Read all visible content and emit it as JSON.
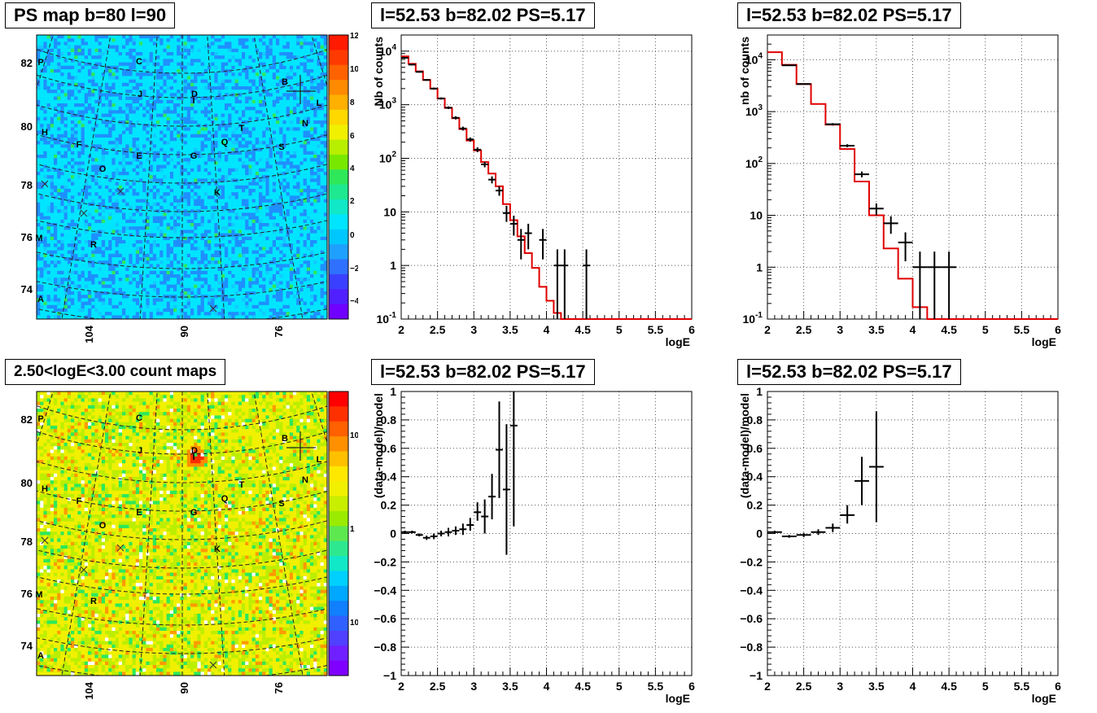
{
  "titles": {
    "map_top": "PS map b=80 l=90",
    "map_bottom": "2.50<logE<3.00 count maps",
    "spec_a": "l=52.53 b=82.02 PS=5.17",
    "spec_b": "l=52.53 b=82.02 PS=5.17",
    "res_a": "l=52.53 b=82.02 PS=5.17",
    "res_b": "l=52.53 b=82.02 PS=5.17"
  },
  "maps": {
    "y_ticks": [
      "82",
      "80",
      "78",
      "76",
      "74"
    ],
    "x_ticks": [
      "104",
      "90",
      "76"
    ],
    "source_labels": [
      "P",
      "C",
      "B",
      "J",
      "D",
      "I",
      "L",
      "N",
      "H",
      "T",
      "F",
      "Q",
      "E",
      "G",
      "S",
      "O",
      "K",
      "M",
      "R",
      "A"
    ],
    "colors": {
      "cyan": "#00e5ff",
      "blue": "#1f8fff",
      "green": "#2ee85a",
      "yellow": "#f0f000",
      "orange": "#ff8c00",
      "red": "#ff2a00"
    }
  },
  "colorbar_top": {
    "labels": [
      "12",
      "10",
      "8",
      "6",
      "4",
      "2",
      "0",
      "-2",
      "-4"
    ]
  },
  "colorbar_bottom": {
    "labels": [
      "10",
      "1",
      "10-1"
    ]
  },
  "chart_data": [
    {
      "type": "line",
      "id": "spec_a",
      "title": "l=52.53 b=82.02 PS=5.17",
      "xlabel": "logE",
      "ylabel": "Nb of counts",
      "xlim": [
        2,
        6
      ],
      "ylim": [
        0.1,
        20000
      ],
      "log_y": true,
      "grid": true,
      "x_ticks": [
        "2",
        "2.5",
        "3",
        "3.5",
        "4",
        "4.5",
        "5",
        "5.5",
        "6"
      ],
      "y_ticks": [
        "10^-1",
        "1",
        "10",
        "10^2",
        "10^3",
        "10^4"
      ],
      "model_step": {
        "edges": [
          2.0,
          2.1,
          2.2,
          2.3,
          2.4,
          2.5,
          2.6,
          2.7,
          2.8,
          2.9,
          3.0,
          3.1,
          3.2,
          3.3,
          3.4,
          3.5,
          3.6,
          3.7,
          3.8,
          3.9,
          4.0,
          4.1,
          4.2,
          4.3,
          6.0
        ],
        "values": [
          8000,
          5800,
          4200,
          2900,
          2000,
          1300,
          870,
          560,
          350,
          215,
          140,
          85,
          52,
          30,
          14,
          7,
          3.5,
          1.7,
          0.9,
          0.4,
          0.22,
          0.13,
          0.1,
          0.1
        ]
      },
      "data_points": [
        {
          "x": 2.05,
          "y": 7500,
          "xerr": 0.05,
          "ylo": 7300,
          "yhi": 7700
        },
        {
          "x": 2.15,
          "y": 5600,
          "xerr": 0.05,
          "ylo": 5450,
          "yhi": 5750
        },
        {
          "x": 2.25,
          "y": 4100,
          "xerr": 0.05,
          "ylo": 3970,
          "yhi": 4230
        },
        {
          "x": 2.35,
          "y": 2900,
          "xerr": 0.05,
          "ylo": 2800,
          "yhi": 3000
        },
        {
          "x": 2.45,
          "y": 2000,
          "xerr": 0.05,
          "ylo": 1910,
          "yhi": 2090
        },
        {
          "x": 2.55,
          "y": 1310,
          "xerr": 0.05,
          "ylo": 1250,
          "yhi": 1370
        },
        {
          "x": 2.65,
          "y": 880,
          "xerr": 0.05,
          "ylo": 830,
          "yhi": 930
        },
        {
          "x": 2.75,
          "y": 570,
          "xerr": 0.05,
          "ylo": 530,
          "yhi": 610
        },
        {
          "x": 2.85,
          "y": 360,
          "xerr": 0.05,
          "ylo": 330,
          "yhi": 390
        },
        {
          "x": 2.95,
          "y": 225,
          "xerr": 0.05,
          "ylo": 205,
          "yhi": 245
        },
        {
          "x": 3.05,
          "y": 145,
          "xerr": 0.05,
          "ylo": 130,
          "yhi": 160
        },
        {
          "x": 3.15,
          "y": 77,
          "xerr": 0.05,
          "ylo": 68,
          "yhi": 86
        },
        {
          "x": 3.25,
          "y": 40,
          "xerr": 0.05,
          "ylo": 34,
          "yhi": 46
        },
        {
          "x": 3.35,
          "y": 25,
          "xerr": 0.05,
          "ylo": 20,
          "yhi": 30
        },
        {
          "x": 3.45,
          "y": 9.5,
          "xerr": 0.05,
          "ylo": 6.5,
          "yhi": 13
        },
        {
          "x": 3.55,
          "y": 6,
          "xerr": 0.05,
          "ylo": 3.6,
          "yhi": 8.5
        },
        {
          "x": 3.65,
          "y": 3,
          "xerr": 0.05,
          "ylo": 1.3,
          "yhi": 4.8
        },
        {
          "x": 3.75,
          "y": 4,
          "xerr": 0.05,
          "ylo": 2,
          "yhi": 6
        },
        {
          "x": 3.95,
          "y": 3,
          "xerr": 0.05,
          "ylo": 1.3,
          "yhi": 4.8
        },
        {
          "x": 4.15,
          "y": 1,
          "xerr": 0.05,
          "ylo": 0.1,
          "yhi": 2
        },
        {
          "x": 4.25,
          "y": 1,
          "xerr": 0.05,
          "ylo": 0.1,
          "yhi": 2
        },
        {
          "x": 4.55,
          "y": 1,
          "xerr": 0.05,
          "ylo": 0.1,
          "yhi": 2
        }
      ]
    },
    {
      "type": "line",
      "id": "spec_b",
      "title": "l=52.53 b=82.02 PS=5.17",
      "xlabel": "logE",
      "ylabel": "nb of counts",
      "xlim": [
        2,
        6
      ],
      "ylim": [
        0.1,
        30000
      ],
      "log_y": true,
      "grid": true,
      "x_ticks": [
        "2",
        "2.5",
        "3",
        "3.5",
        "4",
        "4.5",
        "5",
        "5.5",
        "6"
      ],
      "y_ticks": [
        "10^-1",
        "1",
        "10",
        "10^2",
        "10^3",
        "10^4"
      ],
      "model_step": {
        "edges": [
          2.0,
          2.2,
          2.4,
          2.6,
          2.8,
          3.0,
          3.2,
          3.4,
          3.6,
          3.8,
          4.0,
          4.2,
          6.0
        ],
        "values": [
          14000,
          8000,
          3400,
          1400,
          560,
          190,
          45,
          10,
          2.3,
          0.6,
          0.17,
          0.1
        ]
      },
      "data_points": [
        {
          "x": 2.3,
          "y": 7800,
          "xerr": 0.1,
          "ylo": 7600,
          "yhi": 8000
        },
        {
          "x": 2.5,
          "y": 3400,
          "xerr": 0.1,
          "ylo": 3300,
          "yhi": 3500
        },
        {
          "x": 2.9,
          "y": 570,
          "xerr": 0.1,
          "ylo": 540,
          "yhi": 600
        },
        {
          "x": 3.1,
          "y": 220,
          "xerr": 0.1,
          "ylo": 205,
          "yhi": 235
        },
        {
          "x": 3.3,
          "y": 62,
          "xerr": 0.1,
          "ylo": 54,
          "yhi": 70
        },
        {
          "x": 3.5,
          "y": 13.5,
          "xerr": 0.1,
          "ylo": 10,
          "yhi": 17
        },
        {
          "x": 3.7,
          "y": 7,
          "xerr": 0.1,
          "ylo": 4.4,
          "yhi": 9.6
        },
        {
          "x": 3.9,
          "y": 3,
          "xerr": 0.1,
          "ylo": 1.3,
          "yhi": 4.7
        },
        {
          "x": 4.1,
          "y": 1,
          "xerr": 0.1,
          "ylo": 0.1,
          "yhi": 2
        },
        {
          "x": 4.3,
          "y": 1,
          "xerr": 0.1,
          "ylo": 0.1,
          "yhi": 2
        },
        {
          "x": 4.5,
          "y": 1,
          "xerr": 0.1,
          "ylo": 0.1,
          "yhi": 2
        }
      ]
    },
    {
      "type": "scatter",
      "id": "res_a",
      "title": "l=52.53 b=82.02 PS=5.17",
      "xlabel": "logE",
      "ylabel": "(data-model)/model",
      "xlim": [
        2,
        6
      ],
      "ylim": [
        -1,
        1
      ],
      "grid": true,
      "x_ticks": [
        "2",
        "2.5",
        "3",
        "3.5",
        "4",
        "4.5",
        "5",
        "5.5",
        "6"
      ],
      "y_ticks": [
        "-1",
        "-0.8",
        "-0.6",
        "-0.4",
        "-0.2",
        "0",
        "0.2",
        "0.4",
        "0.6",
        "0.8",
        "1"
      ],
      "data_points": [
        {
          "x": 2.05,
          "y": 0.01,
          "xerr": 0.05,
          "ylo": 0.0,
          "yhi": 0.02
        },
        {
          "x": 2.15,
          "y": 0.01,
          "xerr": 0.05,
          "ylo": 0.0,
          "yhi": 0.02
        },
        {
          "x": 2.25,
          "y": -0.01,
          "xerr": 0.05,
          "ylo": -0.02,
          "yhi": 0.0
        },
        {
          "x": 2.35,
          "y": -0.03,
          "xerr": 0.05,
          "ylo": -0.045,
          "yhi": -0.015
        },
        {
          "x": 2.45,
          "y": -0.02,
          "xerr": 0.05,
          "ylo": -0.04,
          "yhi": 0.0
        },
        {
          "x": 2.55,
          "y": 0.0,
          "xerr": 0.05,
          "ylo": -0.02,
          "yhi": 0.02
        },
        {
          "x": 2.65,
          "y": 0.01,
          "xerr": 0.05,
          "ylo": -0.02,
          "yhi": 0.04
        },
        {
          "x": 2.75,
          "y": 0.02,
          "xerr": 0.05,
          "ylo": -0.01,
          "yhi": 0.05
        },
        {
          "x": 2.85,
          "y": 0.03,
          "xerr": 0.05,
          "ylo": -0.01,
          "yhi": 0.07
        },
        {
          "x": 2.95,
          "y": 0.06,
          "xerr": 0.05,
          "ylo": 0.02,
          "yhi": 0.11
        },
        {
          "x": 3.05,
          "y": 0.15,
          "xerr": 0.05,
          "ylo": 0.09,
          "yhi": 0.22
        },
        {
          "x": 3.15,
          "y": 0.12,
          "xerr": 0.05,
          "ylo": 0.0,
          "yhi": 0.24
        },
        {
          "x": 3.25,
          "y": 0.26,
          "xerr": 0.05,
          "ylo": 0.1,
          "yhi": 0.42
        },
        {
          "x": 3.35,
          "y": 0.59,
          "xerr": 0.05,
          "ylo": 0.25,
          "yhi": 0.93
        },
        {
          "x": 3.45,
          "y": 0.31,
          "xerr": 0.05,
          "ylo": -0.15,
          "yhi": 0.77
        },
        {
          "x": 3.55,
          "y": 0.76,
          "xerr": 0.05,
          "ylo": 0.05,
          "yhi": 1.0
        }
      ]
    },
    {
      "type": "scatter",
      "id": "res_b",
      "title": "l=52.53 b=82.02 PS=5.17",
      "xlabel": "logE",
      "ylabel": "(data-model)/model",
      "xlim": [
        2,
        6
      ],
      "ylim": [
        -1,
        1
      ],
      "grid": true,
      "x_ticks": [
        "2",
        "2.5",
        "3",
        "3.5",
        "4",
        "4.5",
        "5",
        "5.5",
        "6"
      ],
      "y_ticks": [
        "-1",
        "-0.8",
        "-0.6",
        "-0.4",
        "-0.2",
        "0",
        "0.2",
        "0.4",
        "0.6",
        "0.8",
        "1"
      ],
      "data_points": [
        {
          "x": 2.1,
          "y": 0.01,
          "xerr": 0.1,
          "ylo": 0.0,
          "yhi": 0.02
        },
        {
          "x": 2.3,
          "y": -0.02,
          "xerr": 0.1,
          "ylo": -0.03,
          "yhi": -0.01
        },
        {
          "x": 2.5,
          "y": -0.01,
          "xerr": 0.1,
          "ylo": -0.025,
          "yhi": 0.005
        },
        {
          "x": 2.7,
          "y": 0.01,
          "xerr": 0.1,
          "ylo": -0.01,
          "yhi": 0.03
        },
        {
          "x": 2.9,
          "y": 0.04,
          "xerr": 0.1,
          "ylo": 0.01,
          "yhi": 0.07
        },
        {
          "x": 3.1,
          "y": 0.13,
          "xerr": 0.1,
          "ylo": 0.07,
          "yhi": 0.2
        },
        {
          "x": 3.3,
          "y": 0.37,
          "xerr": 0.1,
          "ylo": 0.2,
          "yhi": 0.54
        },
        {
          "x": 3.5,
          "y": 0.47,
          "xerr": 0.1,
          "ylo": 0.08,
          "yhi": 0.86
        }
      ]
    }
  ]
}
